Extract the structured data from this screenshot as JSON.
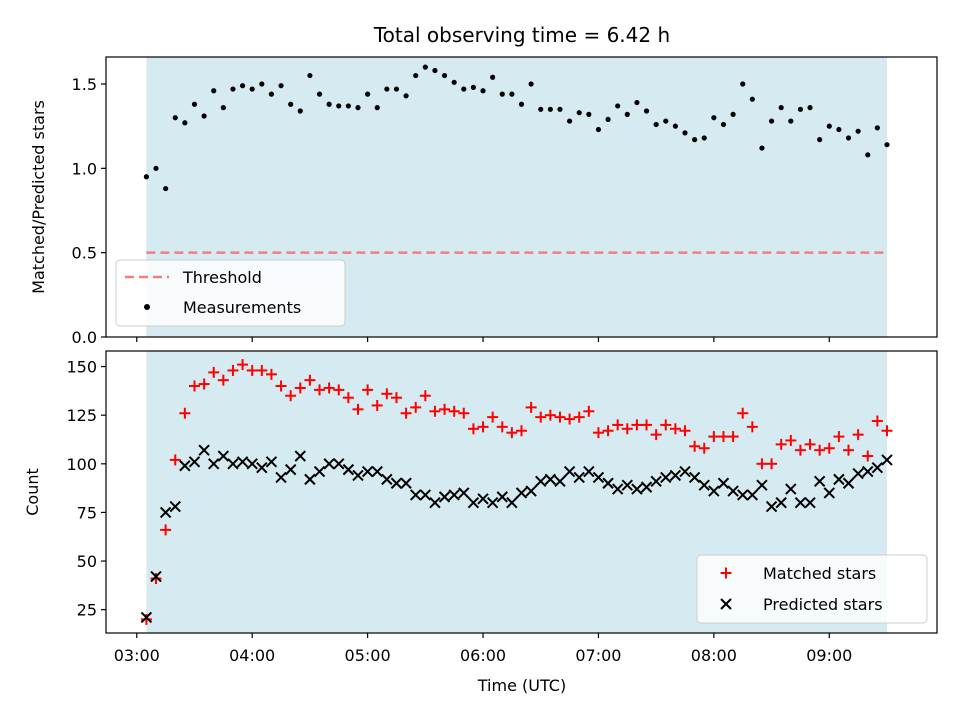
{
  "chart_data": {
    "type": "scatter",
    "title": "Total observing time = 6.42 h",
    "xlabel": "Time (UTC)",
    "x_ticks": [
      "03:00",
      "04:00",
      "05:00",
      "06:00",
      "07:00",
      "08:00",
      "09:00"
    ],
    "xlim": [
      "02:44",
      "09:56"
    ],
    "shaded_span": [
      "03:05",
      "09:30"
    ],
    "shade_color": "#d5ebf1",
    "panels": [
      {
        "ylabel": "Matched/Predicted stars",
        "ylim": [
          0,
          1.66
        ],
        "y_ticks": [
          "0.0",
          "0.5",
          "1.0",
          "1.5"
        ],
        "legend_position": "lower-left",
        "threshold": {
          "name": "Threshold",
          "y": 0.5,
          "color": "#f08080",
          "style": "dashed"
        },
        "series": [
          {
            "name": "Measurements",
            "marker": "dot",
            "color": "#000000",
            "points": [
              [
                "03:05",
                0.95
              ],
              [
                "03:10",
                1.0
              ],
              [
                "03:15",
                0.88
              ],
              [
                "03:20",
                1.3
              ],
              [
                "03:25",
                1.27
              ],
              [
                "03:30",
                1.38
              ],
              [
                "03:35",
                1.31
              ],
              [
                "03:40",
                1.46
              ],
              [
                "03:45",
                1.36
              ],
              [
                "03:50",
                1.47
              ],
              [
                "03:55",
                1.49
              ],
              [
                "04:00",
                1.47
              ],
              [
                "04:05",
                1.5
              ],
              [
                "04:10",
                1.44
              ],
              [
                "04:15",
                1.49
              ],
              [
                "04:20",
                1.38
              ],
              [
                "04:25",
                1.34
              ],
              [
                "04:30",
                1.55
              ],
              [
                "04:35",
                1.44
              ],
              [
                "04:40",
                1.38
              ],
              [
                "04:45",
                1.37
              ],
              [
                "04:50",
                1.37
              ],
              [
                "04:55",
                1.36
              ],
              [
                "05:00",
                1.44
              ],
              [
                "05:05",
                1.36
              ],
              [
                "05:10",
                1.47
              ],
              [
                "05:15",
                1.47
              ],
              [
                "05:20",
                1.43
              ],
              [
                "05:25",
                1.55
              ],
              [
                "05:30",
                1.6
              ],
              [
                "05:35",
                1.58
              ],
              [
                "05:40",
                1.55
              ],
              [
                "05:45",
                1.51
              ],
              [
                "05:50",
                1.47
              ],
              [
                "05:55",
                1.48
              ],
              [
                "06:00",
                1.46
              ],
              [
                "06:05",
                1.54
              ],
              [
                "06:10",
                1.44
              ],
              [
                "06:15",
                1.44
              ],
              [
                "06:20",
                1.38
              ],
              [
                "06:25",
                1.5
              ],
              [
                "06:30",
                1.35
              ],
              [
                "06:35",
                1.35
              ],
              [
                "06:40",
                1.35
              ],
              [
                "06:45",
                1.28
              ],
              [
                "06:50",
                1.33
              ],
              [
                "06:55",
                1.32
              ],
              [
                "07:00",
                1.23
              ],
              [
                "07:05",
                1.29
              ],
              [
                "07:10",
                1.37
              ],
              [
                "07:15",
                1.32
              ],
              [
                "07:20",
                1.39
              ],
              [
                "07:25",
                1.34
              ],
              [
                "07:30",
                1.26
              ],
              [
                "07:35",
                1.28
              ],
              [
                "07:40",
                1.25
              ],
              [
                "07:45",
                1.21
              ],
              [
                "07:50",
                1.17
              ],
              [
                "07:55",
                1.18
              ],
              [
                "08:00",
                1.3
              ],
              [
                "08:05",
                1.26
              ],
              [
                "08:10",
                1.32
              ],
              [
                "08:15",
                1.5
              ],
              [
                "08:20",
                1.41
              ],
              [
                "08:25",
                1.12
              ],
              [
                "08:30",
                1.28
              ],
              [
                "08:35",
                1.36
              ],
              [
                "08:40",
                1.28
              ],
              [
                "08:45",
                1.35
              ],
              [
                "08:50",
                1.36
              ],
              [
                "08:55",
                1.17
              ],
              [
                "09:00",
                1.25
              ],
              [
                "09:05",
                1.23
              ],
              [
                "09:10",
                1.18
              ],
              [
                "09:15",
                1.22
              ],
              [
                "09:20",
                1.08
              ],
              [
                "09:25",
                1.24
              ],
              [
                "09:30",
                1.14
              ]
            ]
          }
        ]
      },
      {
        "ylabel": "Count",
        "ylim": [
          13,
          158
        ],
        "y_ticks": [
          "25",
          "50",
          "75",
          "100",
          "125",
          "150"
        ],
        "legend_position": "lower-right",
        "series": [
          {
            "name": "Matched stars",
            "marker": "plus",
            "color": "#ff0000",
            "points": [
              [
                "03:05",
                20
              ],
              [
                "03:10",
                41
              ],
              [
                "03:15",
                66
              ],
              [
                "03:20",
                102
              ],
              [
                "03:25",
                126
              ],
              [
                "03:30",
                140
              ],
              [
                "03:35",
                141
              ],
              [
                "03:40",
                147
              ],
              [
                "03:45",
                143
              ],
              [
                "03:50",
                148
              ],
              [
                "03:55",
                151
              ],
              [
                "04:00",
                148
              ],
              [
                "04:05",
                148
              ],
              [
                "04:10",
                146
              ],
              [
                "04:15",
                140
              ],
              [
                "04:20",
                135
              ],
              [
                "04:25",
                139
              ],
              [
                "04:30",
                143
              ],
              [
                "04:35",
                138
              ],
              [
                "04:40",
                139
              ],
              [
                "04:45",
                138
              ],
              [
                "04:50",
                134
              ],
              [
                "04:55",
                128
              ],
              [
                "05:00",
                138
              ],
              [
                "05:05",
                130
              ],
              [
                "05:10",
                136
              ],
              [
                "05:15",
                134
              ],
              [
                "05:20",
                126
              ],
              [
                "05:25",
                129
              ],
              [
                "05:30",
                135
              ],
              [
                "05:35",
                127
              ],
              [
                "05:40",
                128
              ],
              [
                "05:45",
                127
              ],
              [
                "05:50",
                126
              ],
              [
                "05:55",
                118
              ],
              [
                "06:00",
                119
              ],
              [
                "06:05",
                124
              ],
              [
                "06:10",
                119
              ],
              [
                "06:15",
                116
              ],
              [
                "06:20",
                117
              ],
              [
                "06:25",
                129
              ],
              [
                "06:30",
                124
              ],
              [
                "06:35",
                125
              ],
              [
                "06:40",
                124
              ],
              [
                "06:45",
                123
              ],
              [
                "06:50",
                124
              ],
              [
                "06:55",
                127
              ],
              [
                "07:00",
                116
              ],
              [
                "07:05",
                117
              ],
              [
                "07:10",
                120
              ],
              [
                "07:15",
                118
              ],
              [
                "07:20",
                120
              ],
              [
                "07:25",
                120
              ],
              [
                "07:30",
                115
              ],
              [
                "07:35",
                120
              ],
              [
                "07:40",
                118
              ],
              [
                "07:45",
                117
              ],
              [
                "07:50",
                109
              ],
              [
                "07:55",
                108
              ],
              [
                "08:00",
                114
              ],
              [
                "08:05",
                114
              ],
              [
                "08:10",
                114
              ],
              [
                "08:15",
                126
              ],
              [
                "08:20",
                119
              ],
              [
                "08:25",
                100
              ],
              [
                "08:30",
                100
              ],
              [
                "08:35",
                110
              ],
              [
                "08:40",
                112
              ],
              [
                "08:45",
                107
              ],
              [
                "08:50",
                110
              ],
              [
                "08:55",
                107
              ],
              [
                "09:00",
                108
              ],
              [
                "09:05",
                114
              ],
              [
                "09:10",
                107
              ],
              [
                "09:15",
                115
              ],
              [
                "09:20",
                104
              ],
              [
                "09:25",
                122
              ],
              [
                "09:30",
                117
              ]
            ]
          },
          {
            "name": "Predicted stars",
            "marker": "x",
            "color": "#000000",
            "points": [
              [
                "03:05",
                21
              ],
              [
                "03:10",
                42
              ],
              [
                "03:15",
                75
              ],
              [
                "03:20",
                78
              ],
              [
                "03:25",
                99
              ],
              [
                "03:30",
                101
              ],
              [
                "03:35",
                107
              ],
              [
                "03:40",
                100
              ],
              [
                "03:45",
                104
              ],
              [
                "03:50",
                100
              ],
              [
                "03:55",
                101
              ],
              [
                "04:00",
                100
              ],
              [
                "04:05",
                98
              ],
              [
                "04:10",
                101
              ],
              [
                "04:15",
                93
              ],
              [
                "04:20",
                97
              ],
              [
                "04:25",
                104
              ],
              [
                "04:30",
                92
              ],
              [
                "04:35",
                96
              ],
              [
                "04:40",
                100
              ],
              [
                "04:45",
                100
              ],
              [
                "04:50",
                97
              ],
              [
                "04:55",
                94
              ],
              [
                "05:00",
                96
              ],
              [
                "05:05",
                96
              ],
              [
                "05:10",
                92
              ],
              [
                "05:15",
                90
              ],
              [
                "05:20",
                90
              ],
              [
                "05:25",
                84
              ],
              [
                "05:30",
                84
              ],
              [
                "05:35",
                80
              ],
              [
                "05:40",
                83
              ],
              [
                "05:45",
                84
              ],
              [
                "05:50",
                85
              ],
              [
                "05:55",
                80
              ],
              [
                "06:00",
                82
              ],
              [
                "06:05",
                80
              ],
              [
                "06:10",
                83
              ],
              [
                "06:15",
                80
              ],
              [
                "06:20",
                85
              ],
              [
                "06:25",
                86
              ],
              [
                "06:30",
                91
              ],
              [
                "06:35",
                92
              ],
              [
                "06:40",
                91
              ],
              [
                "06:45",
                96
              ],
              [
                "06:50",
                93
              ],
              [
                "06:55",
                96
              ],
              [
                "07:00",
                93
              ],
              [
                "07:05",
                90
              ],
              [
                "07:10",
                87
              ],
              [
                "07:15",
                89
              ],
              [
                "07:20",
                87
              ],
              [
                "07:25",
                88
              ],
              [
                "07:30",
                91
              ],
              [
                "07:35",
                93
              ],
              [
                "07:40",
                94
              ],
              [
                "07:45",
                96
              ],
              [
                "07:50",
                93
              ],
              [
                "07:55",
                89
              ],
              [
                "08:00",
                86
              ],
              [
                "08:05",
                90
              ],
              [
                "08:10",
                86
              ],
              [
                "08:15",
                84
              ],
              [
                "08:20",
                84
              ],
              [
                "08:25",
                89
              ],
              [
                "08:30",
                78
              ],
              [
                "08:35",
                80
              ],
              [
                "08:40",
                87
              ],
              [
                "08:45",
                80
              ],
              [
                "08:50",
                80
              ],
              [
                "08:55",
                91
              ],
              [
                "09:00",
                85
              ],
              [
                "09:05",
                92
              ],
              [
                "09:10",
                90
              ],
              [
                "09:15",
                95
              ],
              [
                "09:20",
                96
              ],
              [
                "09:25",
                98
              ],
              [
                "09:30",
                102
              ]
            ]
          }
        ]
      }
    ]
  }
}
